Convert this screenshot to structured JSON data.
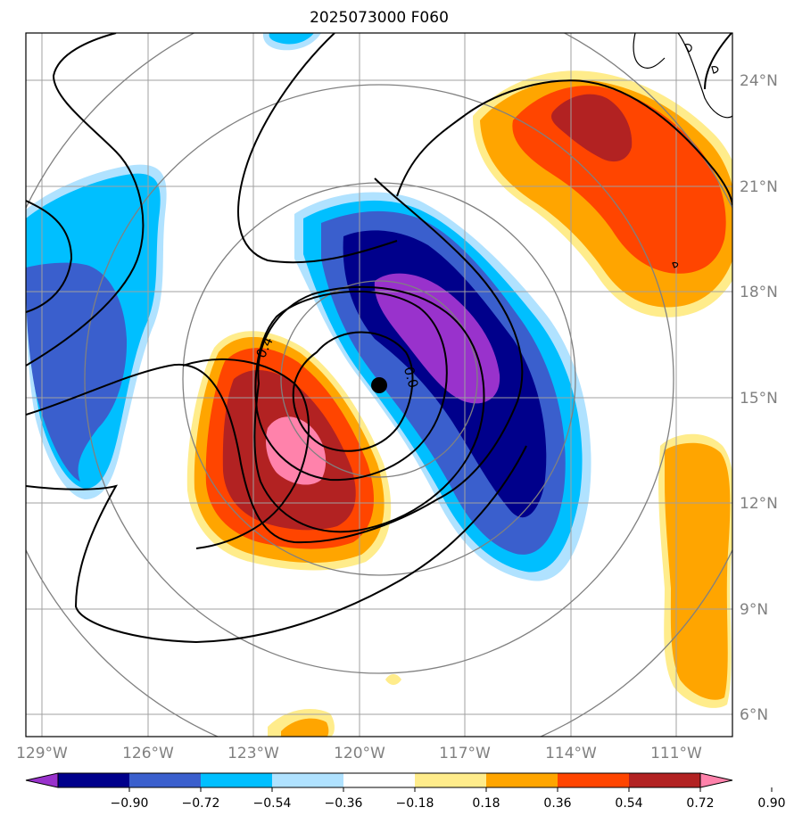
{
  "title": "2025073000 F060",
  "map": {
    "lat_labels": [
      "24°N",
      "21°N",
      "18°N",
      "15°N",
      "12°N",
      "9°N",
      "6°N"
    ],
    "lon_labels": [
      "129°W",
      "126°W",
      "123°W",
      "120°W",
      "117°W",
      "114°W",
      "111°W"
    ],
    "storm_center": {
      "lat": 15.4,
      "lon": -119.4
    },
    "contour_labels": [
      "0.4",
      "0.0"
    ]
  },
  "colorbar": {
    "labels": [
      "−0.90",
      "−0.72",
      "−0.54",
      "−0.36",
      "−0.18",
      "0.18",
      "0.36",
      "0.54",
      "0.72",
      "0.90"
    ],
    "colors": [
      "#9932CC",
      "#00008B",
      "#3A5FCD",
      "#00BFFF",
      "#B0E2FF",
      "#FFFFFF",
      "#FFEC8B",
      "#FFA500",
      "#FF4500",
      "#B22222",
      "#FF82AB"
    ]
  },
  "colors": {
    "grid": "#A0A0A0",
    "range_rings": "#808080",
    "contours": "#000000"
  }
}
